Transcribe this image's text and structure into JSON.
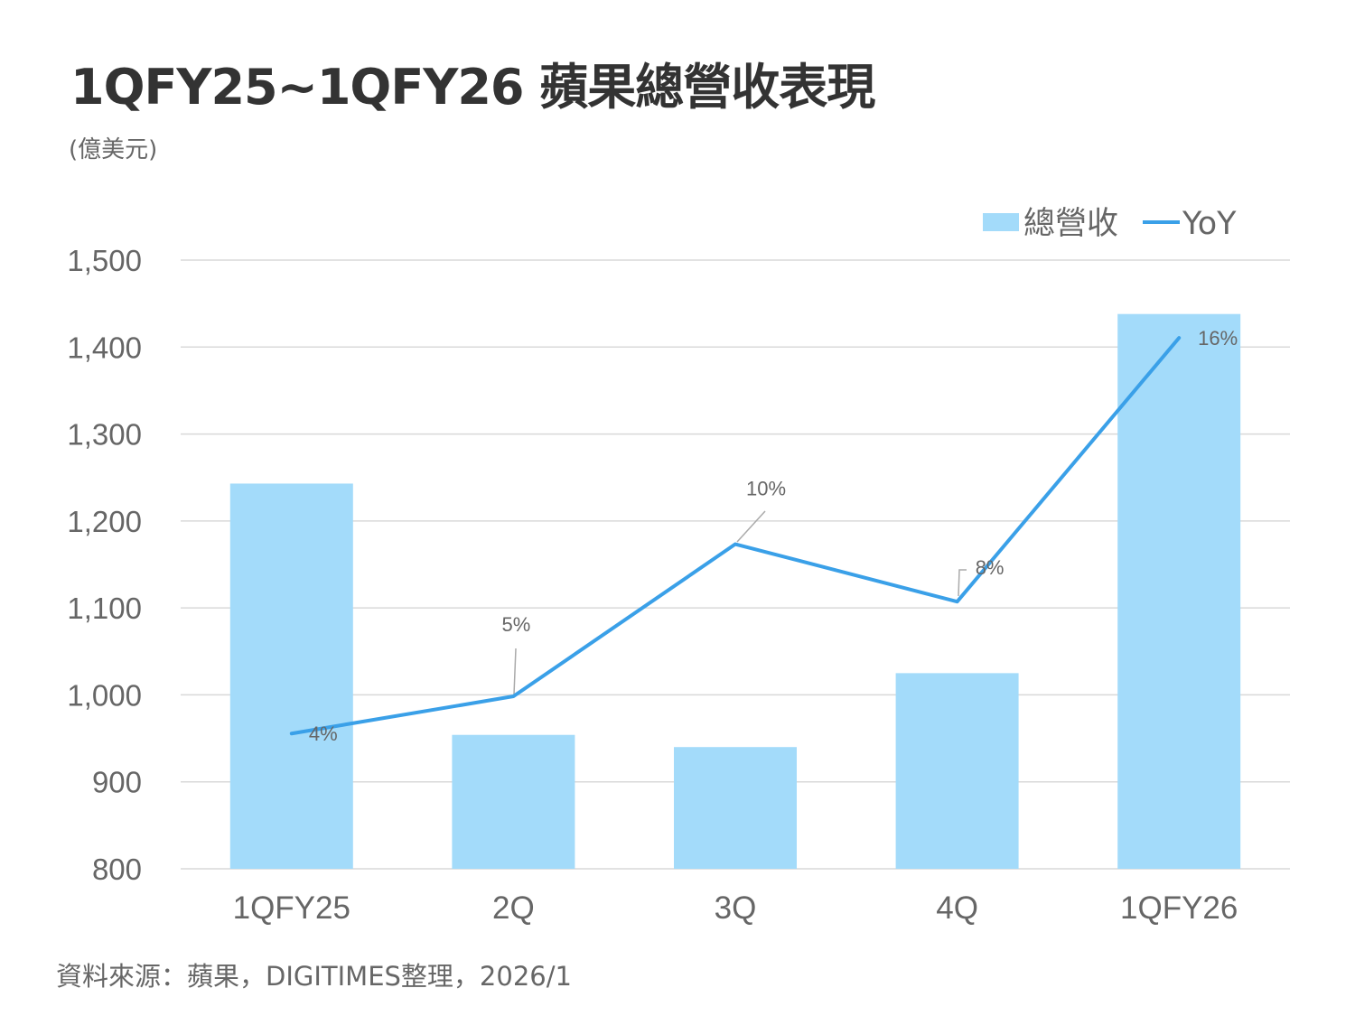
{
  "title": "1QFY25~1QFY26 蘋果總營收表現",
  "unit": "(億美元)",
  "source": "資料來源：蘋果，DIGITIMES整理，2026/1",
  "chart_data": {
    "type": "bar",
    "title": "1QFY25~1QFY26 蘋果總營收表現",
    "ylabel": "(億美元)",
    "categories": [
      "1QFY25",
      "2Q",
      "3Q",
      "4Q",
      "1QFY26"
    ],
    "ylim": [
      800,
      1500
    ],
    "yticks": [
      800,
      900,
      1000,
      1100,
      1200,
      1300,
      1400,
      1500
    ],
    "ytick_labels": [
      "800",
      "900",
      "1,000",
      "1,100",
      "1,200",
      "1,300",
      "1,400",
      "1,500"
    ],
    "y2lim": [
      0,
      18
    ],
    "grid": true,
    "legend_position": "top-right",
    "series": [
      {
        "name": "總營收",
        "type": "bar",
        "color": "#a3dbfa",
        "values": [
          1243,
          954,
          940,
          1025,
          1438
        ]
      },
      {
        "name": "YoY",
        "type": "line",
        "axis": "secondary",
        "color": "#3aa0e8",
        "values": [
          4.0,
          5.1,
          9.6,
          7.9,
          15.7
        ],
        "labels": [
          "4%",
          "5%",
          "10%",
          "8%",
          "16%"
        ]
      }
    ]
  }
}
